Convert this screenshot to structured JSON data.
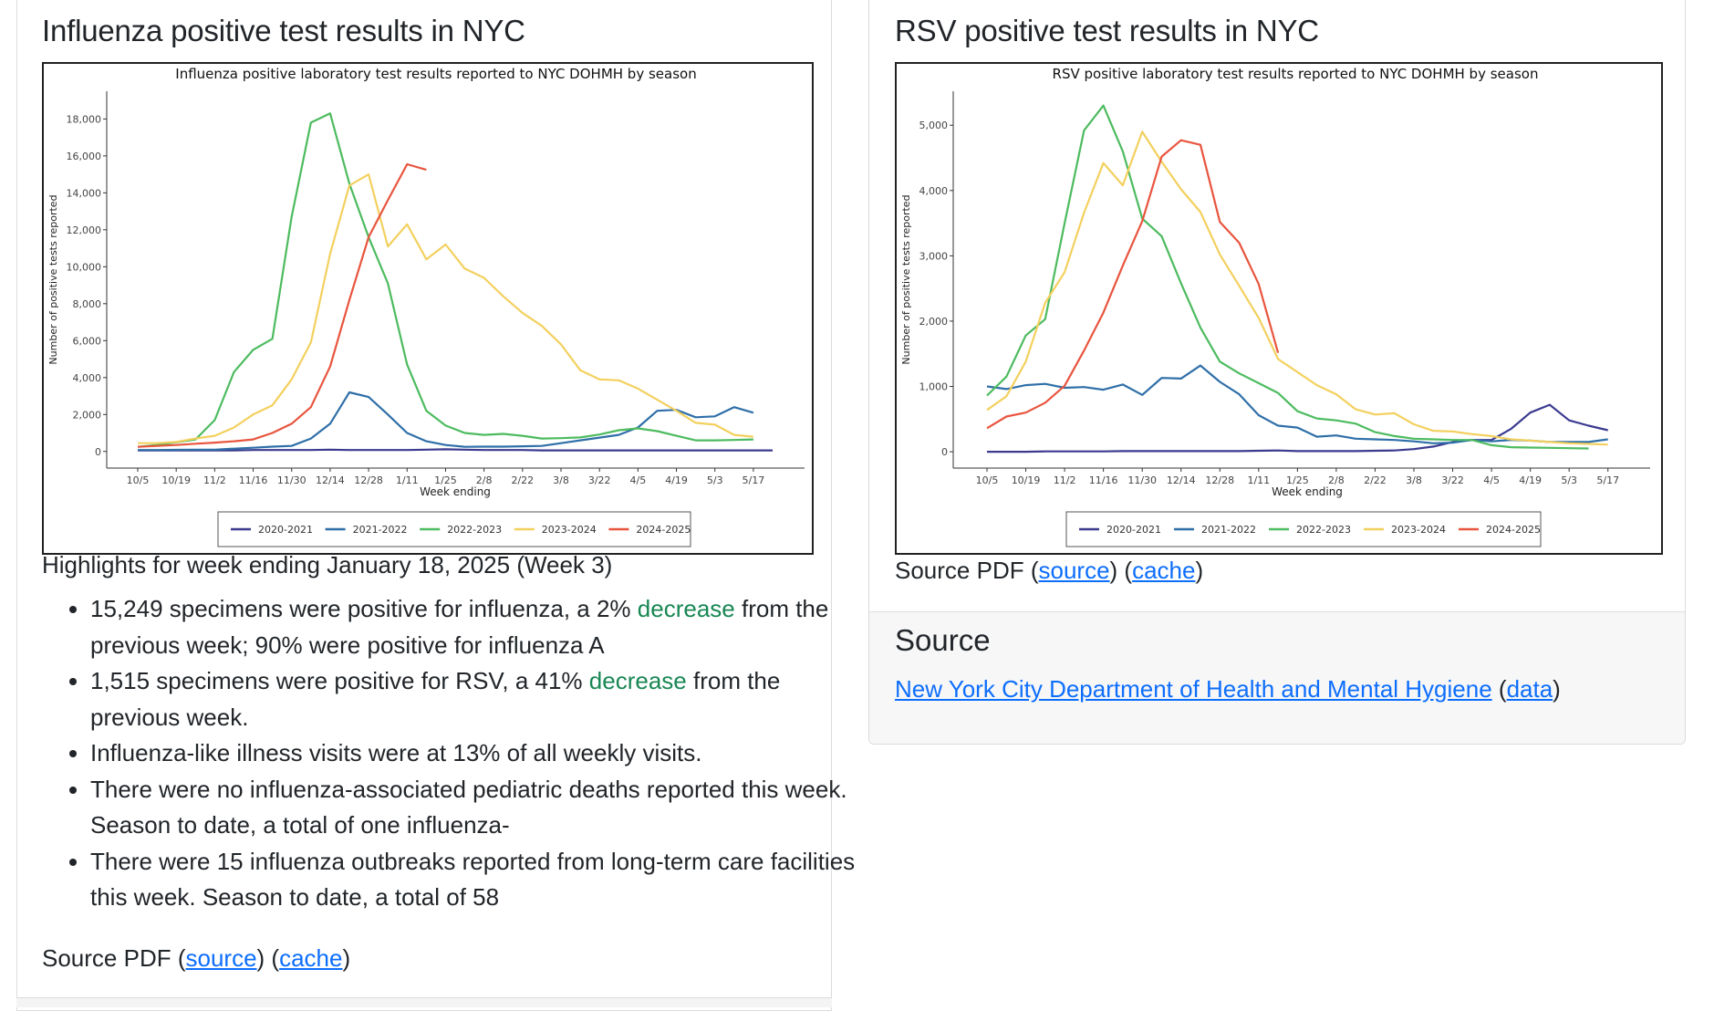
{
  "left_panel": {
    "heading": "Influenza positive test results in NYC",
    "highlights_title": "Highlights for week ending January 18, 2025 (Week 3)",
    "bullets": [
      {
        "pre": "15,249 specimens were positive for influenza, a 2% ",
        "hl": "decrease",
        "post": " from the previous week; 90% were positive for influenza A"
      },
      {
        "pre": "1,515 specimens were positive for RSV, a 41% ",
        "hl": "decrease",
        "post": " from the previous week."
      },
      {
        "pre": "Influenza-like illness visits were at 13% of all weekly visits.",
        "hl": "",
        "post": ""
      },
      {
        "pre": "There were no influenza-associated pediatric deaths reported this week. Season to date, a total of one influenza-",
        "hl": "",
        "post": ""
      },
      {
        "pre": "There were 15 influenza outbreaks reported from long-term care facilities this week. Season to date, a total of 58",
        "hl": "",
        "post": ""
      }
    ],
    "source_prefix": "Source PDF (",
    "source_link": "source",
    "source_mid": ") (",
    "cache_link": "cache",
    "source_suffix": ")"
  },
  "right_panel": {
    "heading": "RSV positive test results in NYC",
    "source_prefix": "Source PDF (",
    "source_link": "source",
    "source_mid": ") (",
    "cache_link": "cache",
    "source_suffix": ")",
    "footer": {
      "heading": "Source",
      "org_link": "New York City Department of Health and Mental Hygiene",
      "paren_open": " (",
      "data_link": "data",
      "paren_close": ")"
    }
  },
  "chart_data": [
    {
      "type": "line",
      "title": "Influenza positive laboratory test results reported to NYC DOHMH by season",
      "xlabel": "Week ending",
      "ylabel": "Number of positive tests reported",
      "ylim": [
        -900,
        19500
      ],
      "yticks": [
        0,
        2000,
        4000,
        6000,
        8000,
        10000,
        12000,
        14000,
        16000,
        18000
      ],
      "ytick_labels": [
        "0",
        "2,000",
        "4,000",
        "6,000",
        "8,000",
        "10,000",
        "12,000",
        "14,000",
        "16,000",
        "18,000"
      ],
      "x_tick_labels": [
        "10/5",
        "10/19",
        "11/2",
        "11/16",
        "11/30",
        "12/14",
        "12/28",
        "1/11",
        "1/25",
        "2/8",
        "2/22",
        "3/8",
        "3/22",
        "4/5",
        "4/19",
        "5/3",
        "5/17"
      ],
      "grid": false,
      "legend_position": "bottom",
      "series": [
        {
          "name": "2020-2021",
          "color": "#3b3a8f",
          "values": [
            60,
            60,
            60,
            60,
            60,
            60,
            80,
            80,
            80,
            80,
            100,
            80,
            80,
            80,
            80,
            100,
            120,
            100,
            80,
            80,
            80,
            60,
            60,
            60,
            60,
            60,
            60,
            60,
            60,
            60,
            60,
            60,
            60,
            60
          ]
        },
        {
          "name": "2021-2022",
          "color": "#2f6fa8",
          "values": [
            80,
            80,
            90,
            100,
            100,
            150,
            200,
            260,
            300,
            700,
            1500,
            3200,
            2950,
            2000,
            1000,
            550,
            350,
            250,
            260,
            260,
            280,
            300,
            450,
            600,
            750,
            900,
            1300,
            2200,
            2250,
            1850,
            1900,
            2400,
            2100
          ]
        },
        {
          "name": "2022-2023",
          "color": "#4dbb5f",
          "values": [
            250,
            350,
            500,
            650,
            1700,
            4300,
            5500,
            6100,
            12700,
            17800,
            18300,
            14500,
            11600,
            9100,
            4700,
            2200,
            1400,
            1000,
            900,
            950,
            850,
            700,
            720,
            760,
            920,
            1150,
            1250,
            1100,
            850,
            600,
            600,
            620,
            650
          ]
        },
        {
          "name": "2023-2024",
          "color": "#f3d05e",
          "values": [
            450,
            450,
            520,
            700,
            850,
            1300,
            2000,
            2500,
            3900,
            5900,
            10700,
            14400,
            15000,
            11100,
            12300,
            10400,
            11200,
            9900,
            9400,
            8400,
            7500,
            6800,
            5800,
            4400,
            3900,
            3850,
            3400,
            2800,
            2200,
            1550,
            1450,
            900,
            800
          ]
        },
        {
          "name": "2024-2025",
          "color": "#e8553e",
          "values": [
            250,
            300,
            350,
            420,
            480,
            550,
            650,
            1000,
            1500,
            2400,
            4600,
            8200,
            11600,
            13600,
            15550,
            15249
          ]
        }
      ]
    },
    {
      "type": "line",
      "title": "RSV positive laboratory test results reported to NYC DOHMH by season",
      "xlabel": "Week ending",
      "ylabel": "Number of positive tests reported",
      "ylim": [
        -250,
        5520
      ],
      "yticks": [
        0,
        1000,
        2000,
        3000,
        4000,
        5000
      ],
      "ytick_labels": [
        "0",
        "1,000",
        "2,000",
        "3,000",
        "4,000",
        "5,000"
      ],
      "x_tick_labels": [
        "10/5",
        "10/19",
        "11/2",
        "11/16",
        "11/30",
        "12/14",
        "12/28",
        "1/11",
        "1/25",
        "2/8",
        "2/22",
        "3/8",
        "3/22",
        "4/5",
        "4/19",
        "5/3",
        "5/17"
      ],
      "grid": false,
      "legend_position": "bottom",
      "series": [
        {
          "name": "2020-2021",
          "color": "#3b3a8f",
          "values": [
            0,
            0,
            0,
            5,
            5,
            5,
            5,
            10,
            10,
            10,
            10,
            10,
            10,
            10,
            15,
            20,
            10,
            10,
            10,
            10,
            15,
            20,
            40,
            80,
            150,
            180,
            180,
            350,
            600,
            720,
            480,
            400,
            330
          ]
        },
        {
          "name": "2021-2022",
          "color": "#2f6fa8",
          "values": [
            1000,
            960,
            1020,
            1040,
            980,
            990,
            950,
            1030,
            870,
            1130,
            1120,
            1320,
            1070,
            880,
            560,
            400,
            370,
            230,
            250,
            200,
            190,
            180,
            160,
            130,
            140,
            180,
            160,
            180,
            170,
            150,
            150,
            150,
            190
          ]
        },
        {
          "name": "2022-2023",
          "color": "#4dbb5f",
          "values": [
            860,
            1150,
            1780,
            2030,
            3500,
            4920,
            5300,
            4600,
            3570,
            3300,
            2580,
            1900,
            1380,
            1200,
            1050,
            900,
            620,
            510,
            480,
            430,
            300,
            240,
            200,
            190,
            180,
            180,
            100,
            70,
            65,
            60,
            55,
            50
          ]
        },
        {
          "name": "2023-2024",
          "color": "#f3d05e",
          "values": [
            640,
            850,
            1380,
            2280,
            2750,
            3660,
            4420,
            4080,
            4900,
            4440,
            4020,
            3670,
            3020,
            2540,
            2050,
            1420,
            1220,
            1020,
            880,
            650,
            570,
            590,
            420,
            320,
            310,
            270,
            240,
            190,
            170,
            150,
            130,
            120,
            110
          ]
        },
        {
          "name": "2024-2025",
          "color": "#e8553e",
          "values": [
            360,
            540,
            600,
            750,
            1010,
            1550,
            2130,
            2850,
            3530,
            4520,
            4770,
            4700,
            3520,
            3200,
            2570,
            1515
          ]
        }
      ]
    }
  ]
}
